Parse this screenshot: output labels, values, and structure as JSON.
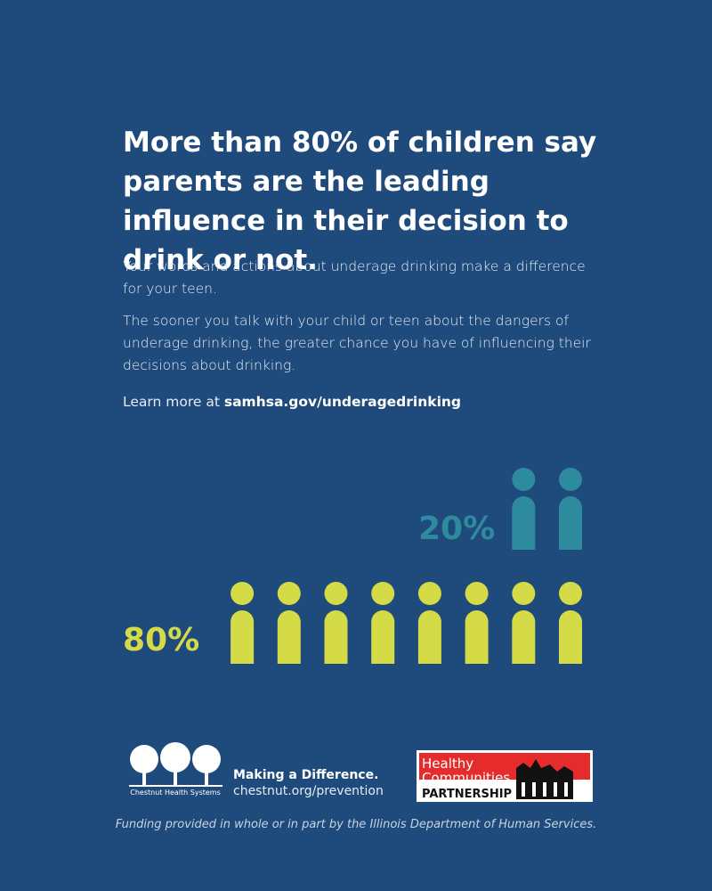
{
  "header": {
    "title": "More than 80% of children say parents are the leading influence in their decision to drink or not."
  },
  "body": {
    "paragraphs": [
      "Your words and actions about underage drinking make a difference for your teen.",
      "The sooner you talk with your child or teen about the dangers of underage drinking, the greater chance you have of influencing their decisions about drinking."
    ],
    "learn_more": {
      "text": "Learn more at",
      "link": "samhsa.gov/underagedrinking"
    }
  },
  "pictogram": {
    "groups": [
      {
        "value": 80,
        "value_label": "80%",
        "color": "#d4db47"
      },
      {
        "value": 20,
        "value_label": "20%",
        "color": "#2e8b9d"
      }
    ]
  },
  "footer": {
    "chestnut": {
      "logo_text": "Chestnut Health Systems",
      "tagline": "Making a Difference.",
      "url": "chestnut.org/prevention"
    },
    "partner": {
      "line1": "Healthy",
      "line2": "Communities",
      "line3": "PARTNERSHIP"
    },
    "funding": "Funding provided in whole or in part by the Illinois Department of Human Services."
  }
}
